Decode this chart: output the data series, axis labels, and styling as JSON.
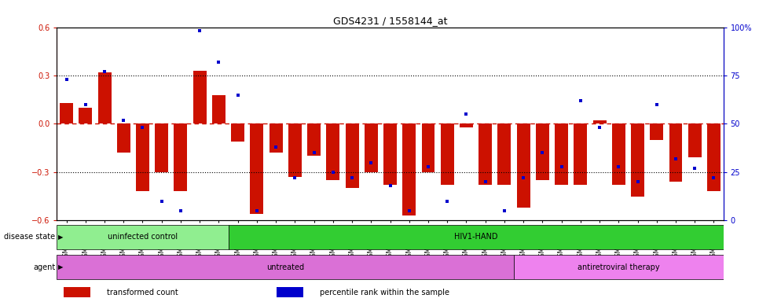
{
  "title": "GDS4231 / 1558144_at",
  "samples": [
    "GSM697483",
    "GSM697484",
    "GSM697485",
    "GSM697486",
    "GSM697487",
    "GSM697488",
    "GSM697489",
    "GSM697490",
    "GSM697491",
    "GSM697492",
    "GSM697493",
    "GSM697494",
    "GSM697495",
    "GSM697496",
    "GSM697497",
    "GSM697498",
    "GSM697499",
    "GSM697500",
    "GSM697501",
    "GSM697502",
    "GSM697503",
    "GSM697504",
    "GSM697505",
    "GSM697506",
    "GSM697507",
    "GSM697508",
    "GSM697509",
    "GSM697510",
    "GSM697511",
    "GSM697512",
    "GSM697513",
    "GSM697514",
    "GSM697515",
    "GSM697516",
    "GSM697517"
  ],
  "bar_values": [
    0.13,
    0.1,
    0.32,
    -0.18,
    -0.42,
    -0.3,
    -0.42,
    0.33,
    0.18,
    -0.11,
    -0.56,
    -0.18,
    -0.33,
    -0.2,
    -0.35,
    -0.4,
    -0.3,
    -0.38,
    -0.57,
    -0.3,
    -0.38,
    -0.02,
    -0.38,
    -0.38,
    -0.52,
    -0.35,
    -0.38,
    -0.38,
    0.02,
    -0.38,
    -0.45,
    -0.1,
    -0.36,
    -0.21,
    -0.42
  ],
  "percentile_values": [
    73,
    60,
    77,
    52,
    48,
    10,
    5,
    98,
    82,
    65,
    5,
    38,
    22,
    35,
    25,
    22,
    30,
    18,
    5,
    28,
    10,
    55,
    20,
    5,
    22,
    35,
    28,
    62,
    48,
    28,
    20,
    60,
    32,
    27,
    22
  ],
  "disease_state": [
    {
      "label": "uninfected control",
      "start": 0,
      "end": 9,
      "color": "#90EE90"
    },
    {
      "label": "HIV1-HAND",
      "start": 9,
      "end": 35,
      "color": "#32CD32"
    }
  ],
  "agent": [
    {
      "label": "untreated",
      "start": 0,
      "end": 24,
      "color": "#DA70D6"
    },
    {
      "label": "antiretroviral therapy",
      "start": 24,
      "end": 35,
      "color": "#EE82EE"
    }
  ],
  "ylim": [
    -0.6,
    0.6
  ],
  "y2lim": [
    0,
    100
  ],
  "bar_color": "#CC1100",
  "dot_color": "#0000CC",
  "hline_color": "#CC1100",
  "dotted_color": "#000000",
  "title_fontsize": 9,
  "tick_fontsize": 6,
  "label_fontsize": 7,
  "ann_fontsize": 7,
  "legend_items": [
    {
      "label": "transformed count",
      "color": "#CC1100"
    },
    {
      "label": "percentile rank within the sample",
      "color": "#0000CC"
    }
  ]
}
